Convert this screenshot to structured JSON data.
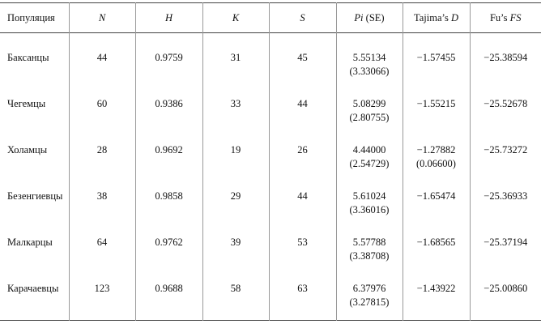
{
  "table": {
    "header": [
      [
        {
          "text": "Популяция"
        }
      ],
      [
        {
          "text": "N",
          "italic": true
        }
      ],
      [
        {
          "text": "H",
          "italic": true
        }
      ],
      [
        {
          "text": "K",
          "italic": true
        }
      ],
      [
        {
          "text": "S",
          "italic": true
        }
      ],
      [
        {
          "text": "Pi",
          "italic": true
        },
        {
          "text": " (SE)"
        }
      ],
      [
        {
          "text": "Tajima’s "
        },
        {
          "text": "D",
          "italic": true
        }
      ],
      [
        {
          "text": "Fu’s "
        },
        {
          "text": "FS",
          "italic": true
        }
      ]
    ],
    "rows": [
      [
        "Баксанцы",
        "44",
        "0.9759",
        "31",
        "45",
        [
          "5.55134",
          "(3.33066)"
        ],
        [
          "−1.57455"
        ],
        "−25.38594"
      ],
      [
        "Чегемцы",
        "60",
        "0.9386",
        "33",
        "44",
        [
          "5.08299",
          "(2.80755)"
        ],
        [
          "−1.55215"
        ],
        "−25.52678"
      ],
      [
        "Холамцы",
        "28",
        "0.9692",
        "19",
        "26",
        [
          "4.44000",
          "(2.54729)"
        ],
        [
          "−1.27882",
          "(0.06600)"
        ],
        "−25.73272"
      ],
      [
        "Безенгиевцы",
        "38",
        "0.9858",
        "29",
        "44",
        [
          "5.61024",
          "(3.36016)"
        ],
        [
          "−1.65474"
        ],
        "−25.36933"
      ],
      [
        "Малкарцы",
        "64",
        "0.9762",
        "39",
        "53",
        [
          "5.57788",
          "(3.38708)"
        ],
        [
          "−1.68565"
        ],
        "−25.37194"
      ],
      [
        "Карачаевцы",
        "123",
        "0.9688",
        "58",
        "63",
        [
          "6.37976",
          "(3.27815)"
        ],
        [
          "−1.43922"
        ],
        "−25.00860"
      ]
    ]
  }
}
